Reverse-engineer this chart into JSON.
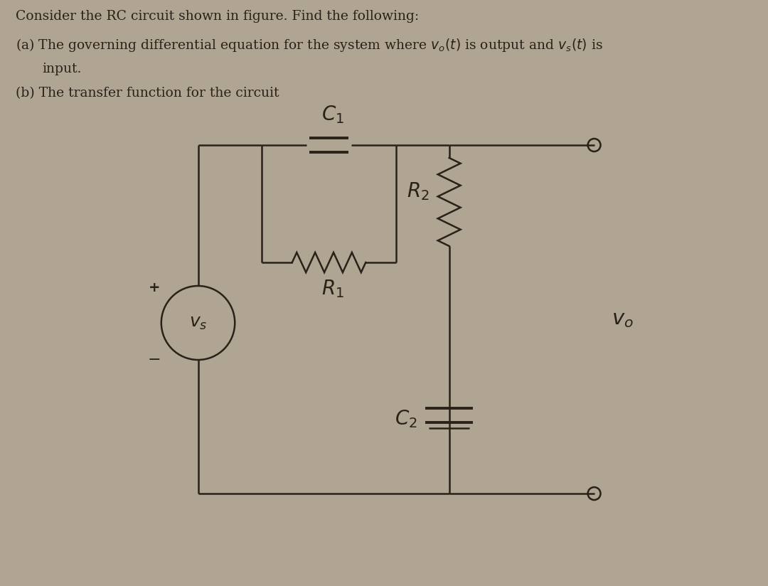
{
  "background_color": "#b0a492",
  "text_color": "#2a2218",
  "line_color": "#2a2218",
  "component_labels": {
    "C1": "$C_1$",
    "R1": "$R_1$",
    "R2": "$R_2$",
    "C2": "$C_2$",
    "Vs": "$v_s$",
    "Vo": "$v_o$",
    "plus": "+",
    "minus": "−"
  },
  "font_size_text": 13.5,
  "font_size_labels": 17
}
